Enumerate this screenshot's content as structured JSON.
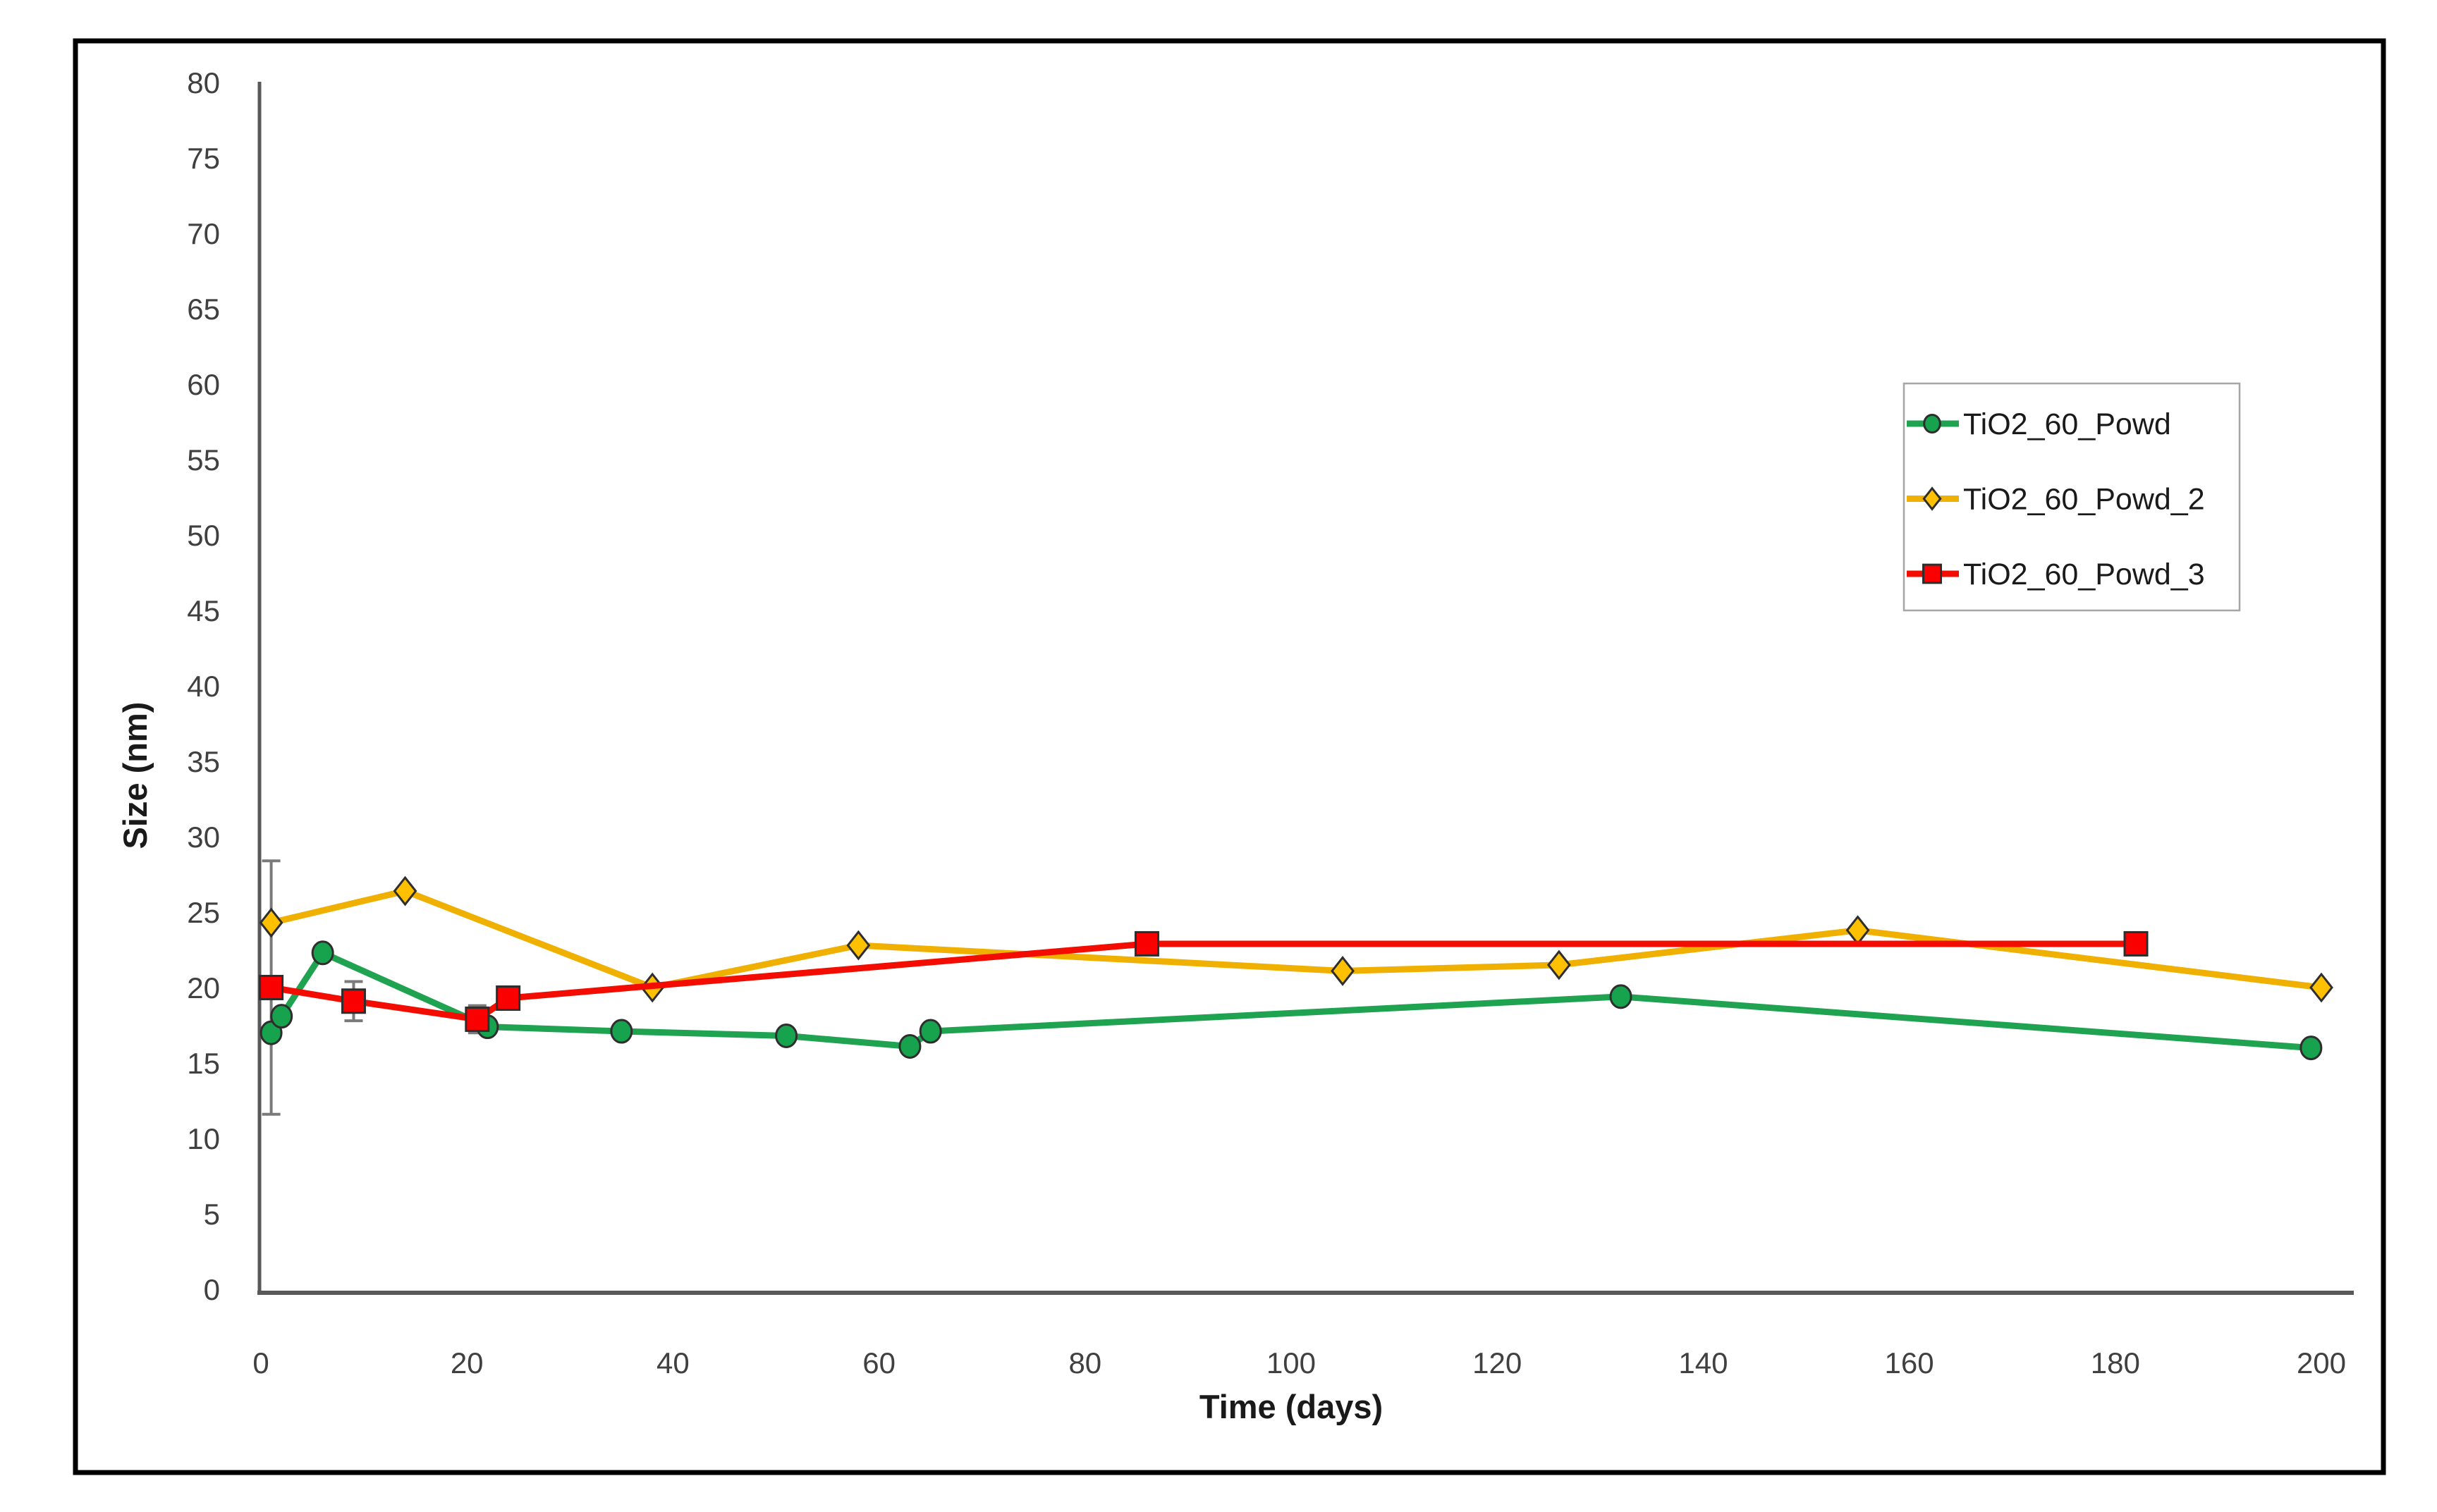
{
  "chart_data": {
    "type": "line",
    "title": "",
    "xlabel": "Time (days)",
    "ylabel": "Size (nm)",
    "xlim": [
      0,
      200
    ],
    "ylim": [
      0,
      80
    ],
    "x_ticks": [
      0,
      20,
      40,
      60,
      80,
      100,
      120,
      140,
      160,
      180,
      200
    ],
    "y_ticks": [
      0,
      5,
      10,
      15,
      20,
      25,
      30,
      35,
      40,
      45,
      50,
      55,
      60,
      65,
      70,
      75,
      80
    ],
    "grid": false,
    "legend_position": "upper-right",
    "series": [
      {
        "name": "TiO2_60_Powd",
        "marker": "circle",
        "line_color": "#1FA351",
        "marker_fill": "#17A24E",
        "points": [
          [
            1,
            17.0
          ],
          [
            2,
            18.1
          ],
          [
            6,
            22.3
          ],
          [
            22,
            17.4
          ],
          [
            35,
            17.1
          ],
          [
            51,
            16.8
          ],
          [
            63,
            16.1
          ],
          [
            65,
            17.1
          ],
          [
            132,
            19.4
          ],
          [
            199,
            16.0
          ]
        ]
      },
      {
        "name": "TiO2_60_Powd_2",
        "marker": "diamond",
        "line_color": "#EFB000",
        "marker_fill": "#FFC000",
        "points": [
          [
            1,
            24.3
          ],
          [
            14,
            26.4
          ],
          [
            38,
            20.0
          ],
          [
            58,
            22.8
          ],
          [
            105,
            21.1
          ],
          [
            126,
            21.5
          ],
          [
            155,
            23.8
          ],
          [
            200,
            20.0
          ]
        ]
      },
      {
        "name": "TiO2_60_Powd_3",
        "marker": "square",
        "line_color": "#F20D00",
        "marker_fill": "#FA0000",
        "points": [
          [
            1,
            20.0
          ],
          [
            9,
            19.1
          ],
          [
            21,
            17.9
          ],
          [
            24,
            19.3
          ],
          [
            86,
            22.9
          ],
          [
            182,
            22.9
          ]
        ],
        "error_bars": [
          {
            "x": 1,
            "y": 20.0,
            "err": 8.4
          },
          {
            "x": 9,
            "y": 19.1,
            "err": 1.3
          },
          {
            "x": 21,
            "y": 17.9,
            "err": 0.9
          }
        ]
      }
    ],
    "colors": {
      "frame": "#000000",
      "axis_line": "#595959",
      "tick_text": "#404040",
      "title_text": "#1a1a1a",
      "legend_border": "#a6a6a6",
      "legend_text": "#1a1a1a",
      "error_bar": "#7a7a7a",
      "marker_outline": "#2e2e2e",
      "background": "#ffffff"
    }
  }
}
